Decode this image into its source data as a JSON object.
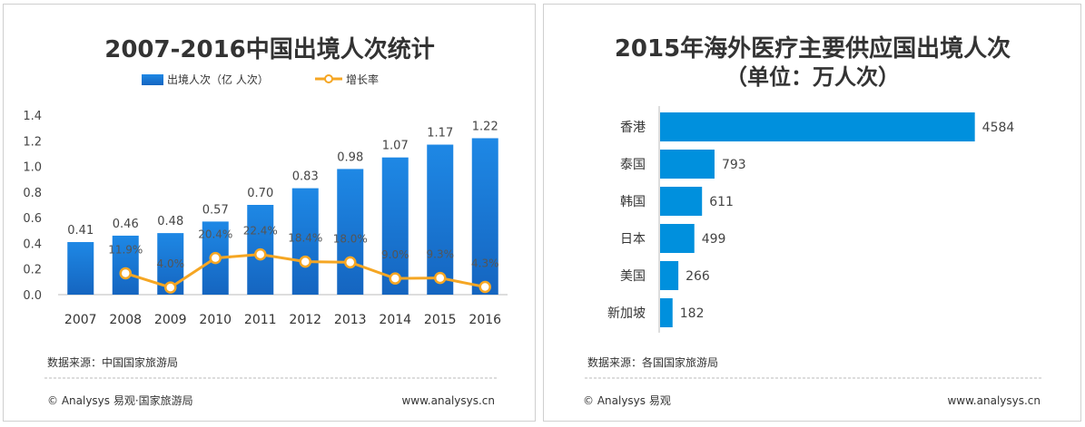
{
  "chart_data": [
    {
      "type": "bar",
      "title": "2007-2016中国出境人次统计",
      "categories": [
        "2007",
        "2008",
        "2009",
        "2010",
        "2011",
        "2012",
        "2013",
        "2014",
        "2015",
        "2016"
      ],
      "series": [
        {
          "name": "出境人次（亿 人次）",
          "kind": "bar",
          "values": [
            0.41,
            0.46,
            0.48,
            0.57,
            0.7,
            0.83,
            0.98,
            1.07,
            1.17,
            1.22
          ],
          "labels": [
            "0.41",
            "0.46",
            "0.48",
            "0.57",
            "0.70",
            "0.83",
            "0.98",
            "1.07",
            "1.17",
            "1.22"
          ]
        },
        {
          "name": "增长率",
          "kind": "line",
          "values": [
            null,
            11.9,
            4.0,
            20.4,
            22.4,
            18.4,
            18.0,
            9.0,
            9.3,
            4.3
          ],
          "labels": [
            "",
            "11.9%",
            "4.0%",
            "20.4%",
            "22.4%",
            "18.4%",
            "18.0%",
            "9.0%",
            "9.3%",
            "4.3%"
          ]
        }
      ],
      "yticks": [
        "0.0",
        "0.2",
        "0.4",
        "0.6",
        "0.8",
        "1.0",
        "1.2",
        "1.4"
      ],
      "ylim": [
        0,
        1.4
      ],
      "rate_ylim": [
        0,
        100
      ],
      "legend_position": "top-center",
      "grid": false,
      "colors": {
        "bar_top": "#1e88e5",
        "bar_bottom": "#1565c0",
        "line": "#f5a623"
      },
      "source": "数据来源：中国国家旅游局",
      "copyright": "© Analysys 易观·国家旅游局",
      "website": "www.analysys.cn"
    },
    {
      "type": "bar",
      "orientation": "horizontal",
      "title": "2015年海外医疗主要供应国出境人次",
      "subtitle": "（单位：万人次）",
      "categories": [
        "香港",
        "泰国",
        "韩国",
        "日本",
        "美国",
        "新加坡"
      ],
      "values": [
        4584,
        793,
        611,
        499,
        266,
        182
      ],
      "xlim": [
        0,
        4800
      ],
      "grid": false,
      "colors": {
        "bar": "#0090dd"
      },
      "source": "数据来源：各国国家旅游局",
      "copyright": "© Analysys 易观",
      "website": "www.analysys.cn"
    }
  ]
}
